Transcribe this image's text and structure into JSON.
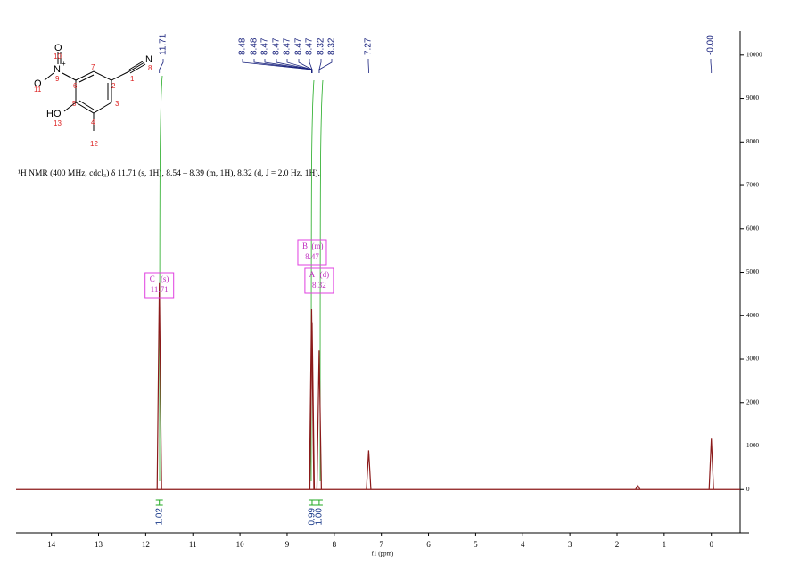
{
  "molecule": {
    "atoms": [
      "O",
      "N",
      "+",
      "O",
      "−",
      "HO",
      "N"
    ],
    "numbers": [
      "10",
      "9",
      "11",
      "6",
      "7",
      "2",
      "1",
      "8",
      "3",
      "5",
      "4",
      "13",
      "12"
    ]
  },
  "caption": "¹H NMR (400 MHz, cdcl₃) δ 11.71 (s, 1H), 8.54 – 8.39 (m, 1H), 8.32 (d, J = 2.0 Hz, 1H).",
  "chart_data": {
    "type": "nmr",
    "xlabel": "f1 (ppm)",
    "xlim": [
      14.75,
      -0.8
    ],
    "xticks": [
      14,
      13,
      12,
      11,
      10,
      9,
      8,
      7,
      6,
      5,
      4,
      3,
      2,
      1,
      0
    ],
    "ylim": [
      -1000,
      10550
    ],
    "yticks": [
      0,
      1000,
      2000,
      3000,
      4000,
      5000,
      6000,
      7000,
      8000,
      9000,
      10000
    ],
    "color": "#8b1a1a",
    "x": [
      11.71,
      8.48,
      8.47,
      8.32,
      7.27,
      1.56,
      0
    ],
    "values": [
      4750,
      4150,
      3850,
      3200,
      900,
      100,
      1170
    ],
    "peak_labels": [
      11.71,
      8.48,
      8.48,
      8.47,
      8.47,
      8.47,
      8.47,
      8.47,
      8.32,
      8.32,
      7.27,
      {
        "value": 0,
        "label": "-0.00"
      }
    ],
    "multiplets": [
      {
        "name": "C",
        "mult": "(s)",
        "shift": 11.71
      },
      {
        "name": "B",
        "mult": "(m)",
        "shift": 8.47
      },
      {
        "name": "A",
        "mult": "(d)",
        "shift": 8.32
      }
    ],
    "integrals": {
      "x": [
        11.71,
        8.47,
        8.32
      ],
      "values": [
        1.02,
        0.99,
        1.0
      ],
      "value_labels": [
        "1.02",
        "0.99",
        "1.00"
      ]
    }
  }
}
